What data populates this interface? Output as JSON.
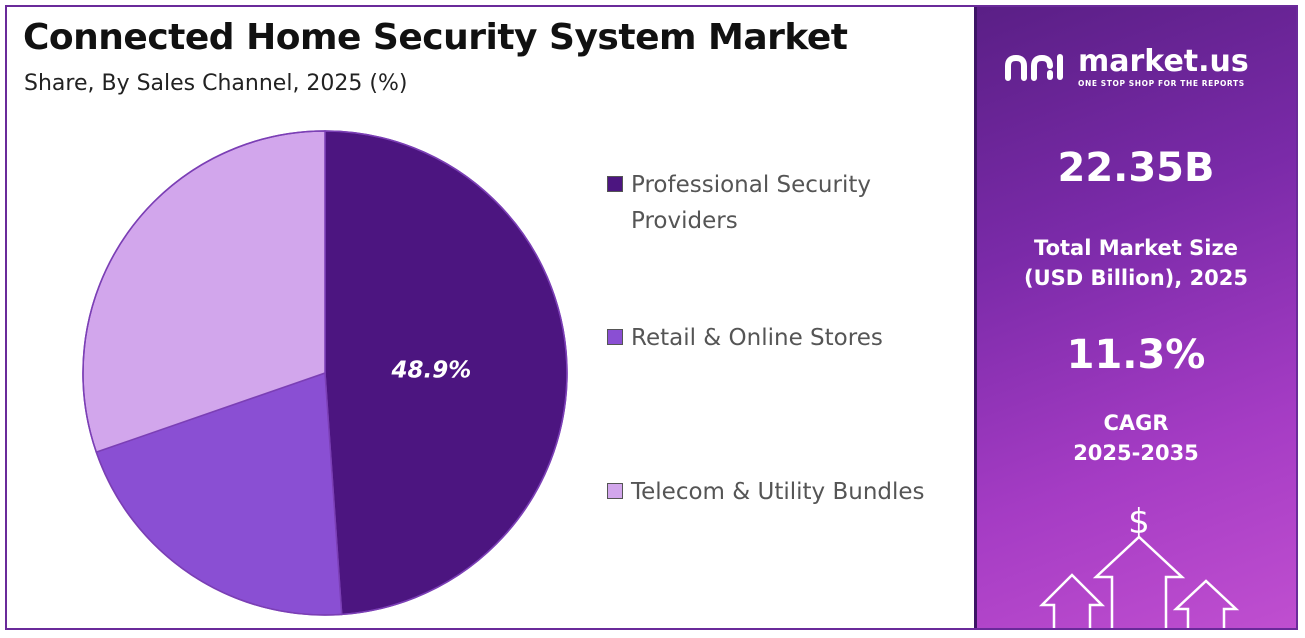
{
  "title": "Connected Home Security System Market",
  "subtitle": "Share, By Sales Channel, 2025 (%)",
  "chart_data": {
    "type": "pie",
    "title": "Connected Home Security System Market",
    "subtitle": "Share, By Sales Channel, 2025 (%)",
    "categories": [
      "Professional Security Providers",
      "Retail & Online Stores",
      "Telecom & Utility Bundles"
    ],
    "values": [
      48.9,
      20.8,
      30.3
    ],
    "colors": [
      "#4c1580",
      "#8a4fd3",
      "#d2a6ec"
    ],
    "data_labels": [
      "48.9%",
      "",
      ""
    ],
    "legend_position": "right"
  },
  "legend": {
    "items": [
      {
        "label": "Professional Security Providers",
        "color": "#4c1580"
      },
      {
        "label": "Retail & Online Stores",
        "color": "#8a4fd3"
      },
      {
        "label": "Telecom & Utility Bundles",
        "color": "#d2a6ec"
      }
    ]
  },
  "side_panel": {
    "brand_name": "market.us",
    "brand_tagline": "ONE STOP SHOP FOR THE REPORTS",
    "market_size_value": "22.35B",
    "market_size_label_line1": "Total Market Size",
    "market_size_label_line2": "(USD Billion), 2025",
    "cagr_value": "11.3%",
    "cagr_label_line1": "CAGR",
    "cagr_label_line2": "2025-2035",
    "dollar_symbol": "$"
  }
}
